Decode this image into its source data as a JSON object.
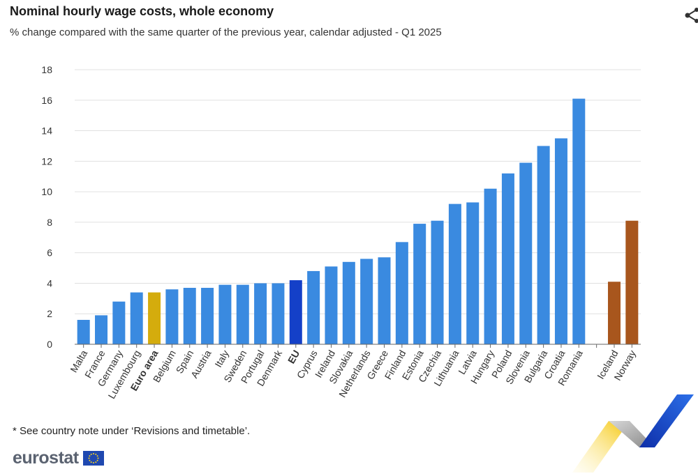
{
  "header": {
    "title": "Nominal hourly wage costs, whole economy",
    "subtitle": "% change compared with the same quarter of the previous year, calendar adjusted - Q1 2025"
  },
  "footnote": "* See country note under ‘Revisions and timetable’.",
  "brand": {
    "name": "eurostat"
  },
  "icons": {
    "share": "share-icon",
    "flag": "eu-flag-icon"
  },
  "colors": {
    "country": "#3a8ae0",
    "euro_area": "#d4ac0d",
    "eu": "#1440c8",
    "efta": "#a8561d",
    "grid": "#e0e0e0"
  },
  "chart_data": {
    "type": "bar",
    "title": "Nominal hourly wage costs, whole economy",
    "subtitle": "% change compared with the same quarter of the previous year, calendar adjusted - Q1 2025",
    "xlabel": "",
    "ylabel": "",
    "ylim": [
      0,
      18
    ],
    "yticks": [
      0,
      2,
      4,
      6,
      8,
      10,
      12,
      14,
      16,
      18
    ],
    "grid": true,
    "bars": [
      {
        "label": "Malta",
        "value": 1.6,
        "group": "country"
      },
      {
        "label": "France",
        "value": 1.9,
        "group": "country"
      },
      {
        "label": "Germany",
        "value": 2.8,
        "group": "country"
      },
      {
        "label": "Luxembourg",
        "value": 3.4,
        "group": "country"
      },
      {
        "label": "Euro area",
        "value": 3.4,
        "group": "euro_area",
        "bold": true
      },
      {
        "label": "Belgium",
        "value": 3.6,
        "group": "country"
      },
      {
        "label": "Spain",
        "value": 3.7,
        "group": "country"
      },
      {
        "label": "Austria",
        "value": 3.7,
        "group": "country"
      },
      {
        "label": "Italy",
        "value": 3.9,
        "group": "country"
      },
      {
        "label": "Sweden",
        "value": 3.9,
        "group": "country"
      },
      {
        "label": "Portugal",
        "value": 4.0,
        "group": "country"
      },
      {
        "label": "Denmark",
        "value": 4.0,
        "group": "country"
      },
      {
        "label": "EU",
        "value": 4.2,
        "group": "eu",
        "bold": true
      },
      {
        "label": "Cyprus",
        "value": 4.8,
        "group": "country"
      },
      {
        "label": "Ireland",
        "value": 5.1,
        "group": "country"
      },
      {
        "label": "Slovakia",
        "value": 5.4,
        "group": "country"
      },
      {
        "label": "Netherlands",
        "value": 5.6,
        "group": "country"
      },
      {
        "label": "Greece",
        "value": 5.7,
        "group": "country"
      },
      {
        "label": "Finland",
        "value": 6.7,
        "group": "country"
      },
      {
        "label": "Estonia",
        "value": 7.9,
        "group": "country"
      },
      {
        "label": "Czechia",
        "value": 8.1,
        "group": "country"
      },
      {
        "label": "Lithuania",
        "value": 9.2,
        "group": "country"
      },
      {
        "label": "Latvia",
        "value": 9.3,
        "group": "country"
      },
      {
        "label": "Hungary",
        "value": 10.2,
        "group": "country"
      },
      {
        "label": "Poland",
        "value": 11.2,
        "group": "country"
      },
      {
        "label": "Slovenia",
        "value": 11.9,
        "group": "country"
      },
      {
        "label": "Bulgaria",
        "value": 13.0,
        "group": "country"
      },
      {
        "label": "Croatia",
        "value": 13.5,
        "group": "country"
      },
      {
        "label": "Romania",
        "value": 16.1,
        "group": "country"
      },
      {
        "label": "",
        "value": null,
        "group": "gap"
      },
      {
        "label": "Iceland",
        "value": 4.1,
        "group": "efta"
      },
      {
        "label": "Norway",
        "value": 8.1,
        "group": "efta"
      }
    ]
  }
}
